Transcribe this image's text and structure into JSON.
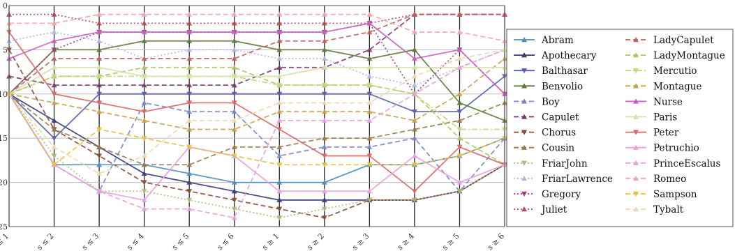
{
  "chart_data": {
    "type": "line",
    "title": "",
    "xlabel": "",
    "ylabel": "",
    "ylim": [
      0,
      25
    ],
    "y_inverted": true,
    "y_ticks": [
      "0",
      "5",
      "10",
      "15",
      "20",
      "25"
    ],
    "categories": [
      "s ≤ 1",
      "s ≤ 2",
      "s ≤ 3",
      "s ≤ 4",
      "s ≤ 5",
      "s ≤ 6",
      "s ≥ 1",
      "s ≥ 2",
      "s ≥ 3",
      "s ≥ 4",
      "s ≥ 5",
      "s ≥ 6"
    ],
    "grid": true,
    "legend_position": "right",
    "series": [
      {
        "name": "Abram",
        "color": "#4c8fbd",
        "dash": "solid",
        "marker": "triangle",
        "values": [
          10,
          18,
          18,
          18,
          19,
          20,
          20,
          20,
          18,
          18,
          17,
          15
        ]
      },
      {
        "name": "Apothecary",
        "color": "#3a3a7a",
        "dash": "solid",
        "marker": "triangle",
        "values": [
          10,
          13,
          16,
          19,
          20,
          21,
          22,
          22,
          22,
          22,
          21,
          18
        ]
      },
      {
        "name": "Balthasar",
        "color": "#5a62a8",
        "dash": "solid",
        "marker": "triangle-down",
        "values": [
          10,
          15,
          10,
          10,
          10,
          10,
          10,
          10,
          10,
          12,
          12,
          8
        ]
      },
      {
        "name": "Benvolio",
        "color": "#5e7a3a",
        "dash": "solid",
        "marker": "triangle",
        "values": [
          10,
          5,
          5,
          4,
          4,
          4,
          5,
          5,
          6,
          5,
          11,
          13
        ]
      },
      {
        "name": "Boy",
        "color": "#7e86c8",
        "dash": "dash",
        "marker": "triangle",
        "values": [
          10,
          18,
          21,
          11,
          12,
          12,
          17,
          16,
          16,
          15,
          21,
          15
        ]
      },
      {
        "name": "Capulet",
        "color": "#7a3a6e",
        "dash": "dash",
        "marker": "triangle",
        "values": [
          8,
          9,
          9,
          9,
          9,
          9,
          7,
          7,
          5,
          1,
          1,
          1
        ]
      },
      {
        "name": "Chorus",
        "color": "#8a4a3a",
        "dash": "dash",
        "marker": "triangle-down",
        "values": [
          5,
          14,
          17,
          20,
          21,
          22,
          23,
          24,
          22,
          22,
          21,
          18
        ]
      },
      {
        "name": "Cousin",
        "color": "#9a7a4a",
        "dash": "dash",
        "marker": "triangle",
        "values": [
          10,
          14,
          16,
          18,
          18,
          16,
          16,
          15,
          15,
          14,
          13,
          11
        ]
      },
      {
        "name": "FriarJohn",
        "color": "#b4b87a",
        "dash": "dot",
        "marker": "triangle-down",
        "values": [
          10,
          17,
          21,
          21,
          22,
          23,
          24,
          23,
          22,
          22,
          21,
          18
        ]
      },
      {
        "name": "FriarLawrence",
        "color": "#b4b4e8",
        "dash": "dot",
        "marker": "triangle",
        "values": [
          4,
          3,
          4,
          6,
          5,
          5,
          6,
          6,
          8,
          9,
          7,
          5
        ]
      },
      {
        "name": "Gregory",
        "color": "#a03a8a",
        "dash": "dot",
        "marker": "triangle-down",
        "values": [
          10,
          5,
          3,
          3,
          3,
          3,
          3,
          3,
          2,
          10,
          5,
          10
        ]
      },
      {
        "name": "Juliet",
        "color": "#b04a5a",
        "dash": "dot",
        "marker": "triangle",
        "values": [
          1,
          1,
          2,
          2,
          2,
          2,
          2,
          2,
          2,
          1,
          1,
          1
        ]
      },
      {
        "name": "LadyCapulet",
        "color": "#c06060",
        "dash": "dash",
        "marker": "triangle",
        "values": [
          10,
          6,
          6,
          6,
          6,
          6,
          4,
          4,
          3,
          1,
          1,
          1
        ]
      },
      {
        "name": "LadyMontague",
        "color": "#a8c860",
        "dash": "dash",
        "marker": "triangle",
        "values": [
          10,
          8,
          8,
          7,
          7,
          7,
          9,
          9,
          9,
          10,
          15,
          18
        ]
      },
      {
        "name": "Mercutio",
        "color": "#c8d480",
        "dash": "dashdot",
        "marker": "triangle-down",
        "values": [
          10,
          8,
          8,
          8,
          8,
          8,
          9,
          9,
          9,
          10,
          14,
          14
        ]
      },
      {
        "name": "Montague",
        "color": "#c8a050",
        "dash": "dash",
        "marker": "triangle",
        "values": [
          10,
          11,
          12,
          13,
          14,
          14,
          12,
          12,
          12,
          13,
          10,
          6
        ]
      },
      {
        "name": "Nurse",
        "color": "#c860c0",
        "dash": "solid",
        "marker": "triangle",
        "values": [
          6,
          4,
          3,
          3,
          3,
          3,
          3,
          3,
          2,
          6,
          5,
          10
        ]
      },
      {
        "name": "Paris",
        "color": "#d8e0a8",
        "dash": "solid",
        "marker": "triangle",
        "values": [
          10,
          7,
          7,
          8,
          8,
          8,
          8,
          7,
          7,
          7,
          7,
          7
        ]
      },
      {
        "name": "Peter",
        "color": "#d86868",
        "dash": "solid",
        "marker": "triangle-down",
        "values": [
          3,
          10,
          11,
          12,
          11,
          11,
          14,
          17,
          17,
          21,
          16,
          18
        ]
      },
      {
        "name": "Petruchio",
        "color": "#e8a0e0",
        "dash": "solid",
        "marker": "triangle",
        "values": [
          10,
          18,
          21,
          22,
          16,
          17,
          21,
          21,
          21,
          17,
          20,
          18
        ]
      },
      {
        "name": "PrinceEscalus",
        "color": "#e8a0d8",
        "dash": "dash",
        "marker": "triangle",
        "values": [
          10,
          18,
          21,
          23,
          23,
          24,
          13,
          13,
          13,
          10,
          7,
          5
        ]
      },
      {
        "name": "Romeo",
        "color": "#f0a8a8",
        "dash": "dash",
        "marker": "triangle",
        "values": [
          2,
          2,
          1,
          1,
          1,
          1,
          1,
          1,
          1,
          3,
          3,
          4
        ]
      },
      {
        "name": "Sampson",
        "color": "#e8c040",
        "dash": "dash",
        "marker": "triangle-down",
        "values": [
          10,
          18,
          14,
          15,
          16,
          17,
          18,
          18,
          18,
          18,
          17,
          15
        ]
      },
      {
        "name": "Tybalt",
        "color": "#f0d8b0",
        "dash": "dash",
        "marker": "triangle",
        "values": [
          10,
          16,
          19,
          17,
          13,
          13,
          11,
          11,
          11,
          8,
          6,
          5
        ]
      }
    ]
  }
}
